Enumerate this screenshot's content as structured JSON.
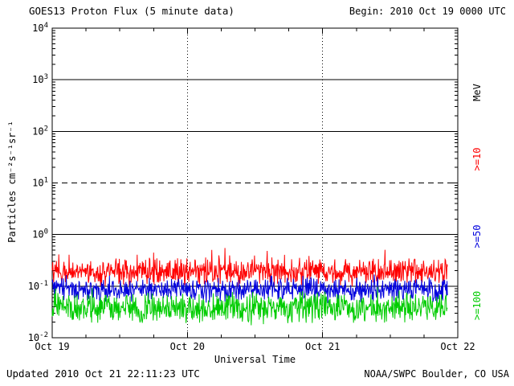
{
  "title": "GOES13 Proton Flux (5 minute data)",
  "begin_label": "Begin: 2010 Oct 19 0000 UTC",
  "footer": {
    "updated": "Updated 2010 Oct 21 22:11:23 UTC",
    "source": "NOAA/SWPC Boulder, CO USA"
  },
  "axes": {
    "ylabel": "Particles cm⁻²s⁻¹sr⁻¹",
    "xlabel": "Universal Time",
    "right_unit": "MeV"
  },
  "chart_data": {
    "type": "line",
    "title": "GOES13 Proton Flux (5 minute data)",
    "xlabel": "Universal Time",
    "ylabel": "Particles cm^-2 s^-1 sr^-1 (log scale)",
    "x_ticks": [
      "Oct 19",
      "Oct 20",
      "Oct 21",
      "Oct 22"
    ],
    "x_range_days": 3,
    "cadence_minutes": 5,
    "data_end_fraction": 0.9748,
    "y_exponents": [
      4,
      3,
      2,
      1,
      0,
      -1,
      -2
    ],
    "y_log_range": [
      -2,
      4
    ],
    "h_solid_gridline_exps": [
      3,
      2,
      0,
      -1
    ],
    "h_dashed_gridline_exps": [
      1
    ],
    "v_dotted_gridline_days": [
      1,
      2
    ],
    "legend_position": "right",
    "series": [
      {
        "name": ">=10 MeV proton flux",
        "label": ">=10",
        "color": "#ff0000",
        "approx_mean_flux": 0.18,
        "approx_min_flux": 0.08,
        "approx_max_flux": 0.5,
        "mean_log10": -0.73,
        "noise_log10": 0.3,
        "spike_log10": 0.22,
        "seed": 11
      },
      {
        "name": ">=50 MeV proton flux",
        "label": ">=50",
        "color": "#0000dd",
        "approx_mean_flux": 0.085,
        "approx_min_flux": 0.045,
        "approx_max_flux": 0.16,
        "mean_log10": -1.07,
        "noise_log10": 0.27,
        "spike_log10": 0.1,
        "seed": 22
      },
      {
        "name": ">=100 MeV proton flux",
        "label": ">=100",
        "color": "#00cc00",
        "approx_mean_flux": 0.037,
        "approx_min_flux": 0.017,
        "approx_max_flux": 0.09,
        "mean_log10": -1.43,
        "noise_log10": 0.34,
        "spike_log10": 0.15,
        "seed": 33
      }
    ]
  }
}
